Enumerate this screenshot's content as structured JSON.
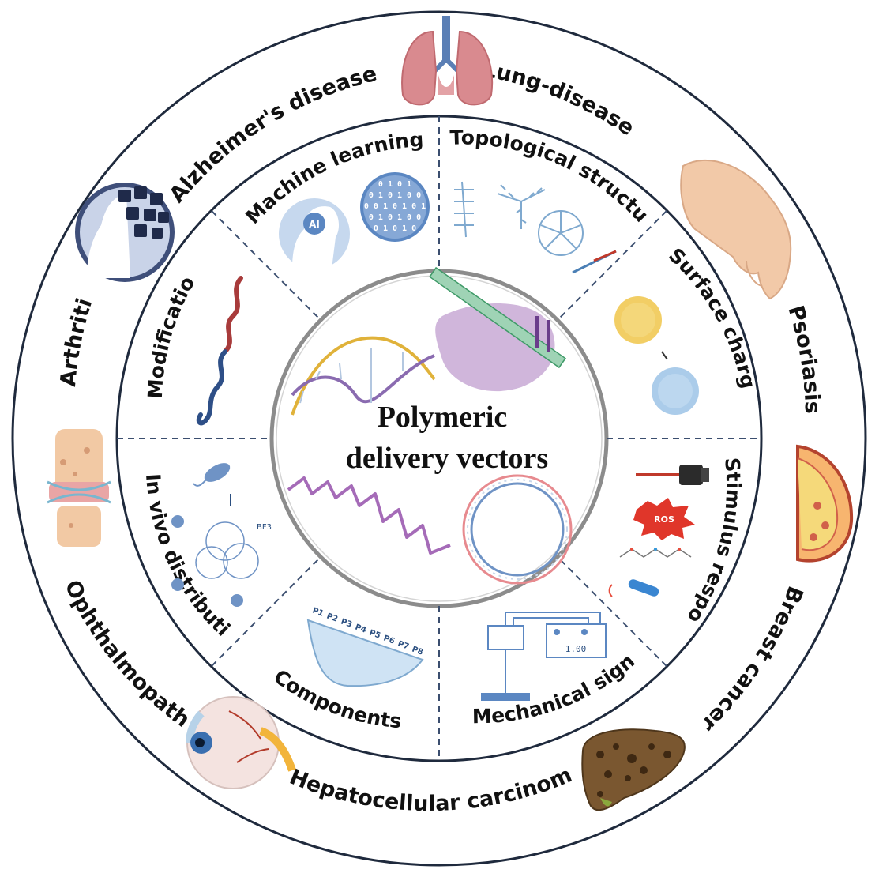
{
  "center": {
    "title_line1": "Polymeric",
    "title_line2": "delivery vectors"
  },
  "outer_ring": {
    "labels": [
      "Alzheimer's disease",
      "Lung-disease",
      "Psoriasis",
      "Breast cancer",
      "Hepatocellular carcinoma",
      "Ophthalmopathy",
      "Arthritis"
    ],
    "icons": [
      "brain-puzzle-icon",
      "lungs-icon",
      "hand-icon",
      "breast-tissue-icon",
      "liver-icon",
      "eye-icon",
      "knee-joint-icon"
    ]
  },
  "middle_ring": {
    "labels": [
      "Machine learning",
      "Topological structure",
      "Surface charge",
      "Stimulus response",
      "Mechanical signals",
      "Components",
      "In vivo distribution",
      "Modification"
    ],
    "icons": [
      "ai-head-icon",
      "binary-globe-icon",
      "polymer-architectures-icon",
      "charged-nanoparticle-icon",
      "light-source-icon",
      "ros-burst-icon",
      "peptide-chain-icon",
      "ultrasound-probe-icon",
      "rheometer-icon",
      "well-plate-icon",
      "mouse-icon",
      "nanoparticle-cluster-icon",
      "modified-polymer-chain-icon"
    ],
    "icon_texts": {
      "ai": "AI",
      "binary_rows": [
        "0 1 0 1",
        "0 1 0 1 0 0",
        "0 0 1 0 1 0 1",
        "0 1 0 1 0 0",
        "0 1 0 1 0"
      ],
      "ros": "ROS",
      "rheometer_display": "1.00",
      "wells": [
        "P1",
        "P2",
        "P3",
        "P4",
        "P5",
        "P6",
        "P7",
        "P8"
      ],
      "bf3": "BF3"
    }
  },
  "inner_icons": [
    "dna-double-helix-icon",
    "crispr-complex-icon",
    "polymer-strand-icon",
    "plasmid-dna-icon"
  ],
  "colors": {
    "ring_stroke": "#1f2a3d",
    "divider": "#3b4e6f",
    "inner_ring": "#8c8c8c"
  }
}
